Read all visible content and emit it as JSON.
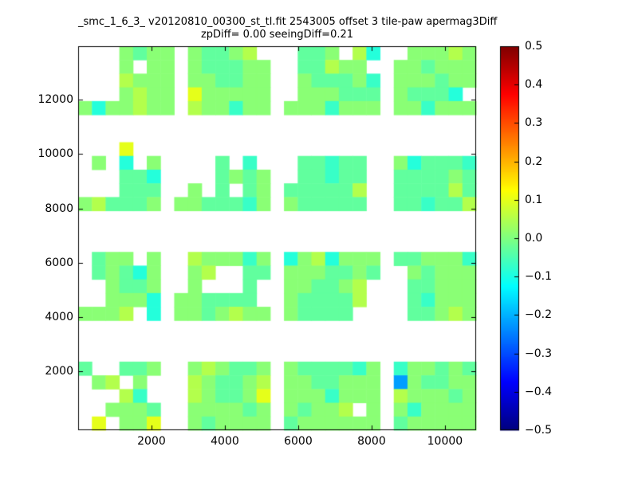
{
  "figure": {
    "title_line1": "_smc_1_6_3_ v20120810_00300_st_tl.fit 2543005 offset 3 tile-paw apermag3Diff",
    "title_line2": "zpDiff= 0.00 seeingDiff=0.21"
  },
  "chart_data": {
    "type": "heatmap",
    "colormap": "jet",
    "value_range": [
      -0.5,
      0.5
    ],
    "x_range": [
      0,
      10850
    ],
    "y_range": [
      -170,
      13970
    ],
    "x_ticks": [
      2000,
      4000,
      6000,
      8000,
      10000
    ],
    "y_ticks": [
      2000,
      4000,
      6000,
      8000,
      10000,
      12000
    ],
    "colorbar_tick_labels": [
      "0.5",
      "0.4",
      "0.3",
      "0.2",
      "0.1",
      "0.0",
      "−0.1",
      "−0.2",
      "−0.3",
      "−0.4",
      "−0.5"
    ],
    "grid_legend": {
      ".": null,
      "g": 0.01,
      "G": -0.03,
      "c": -0.07,
      "C": -0.09,
      "y": 0.05,
      "Y": 0.1,
      "B": -0.22
    },
    "grid_note": "28 rows (top to bottom) x 29 cols (left to right); chars map to apermag3Diff values via grid_legend",
    "grid_rows": [
      "...gGgg.gGGgy...GGg.yC..gggyg",
      "...g.gg.gGGGgg..GGygg..ggGggg",
      "...yggg.ggGGgg..gGGGgc.gggGgg",
      "...gygg.Yggggg..gggGGG.gGGGC.",
      "gCggygg.yggcgg.gggcggg.ggcggg",
      ".............................",
      ".............................",
      "...Y.........................",
      ".g.C.g....G.c...GGcGG..gCGGGc",
      "...GGC....GgGg..GGcGG..GGGGgG",
      "...GGG..g.G.Gg.GGGGGy..GGGGyG",
      "gyGGGg.ggGGGcg.gGGGGG..GGcGGy",
      ".............................",
      ".............................",
      ".............................",
      ".Ggg.g..ygggcg.CgyCggg.GGgggc",
      ".GgGCg..gy..GG.gggGGgG..gGggg",
      "..gGGg..g...G..ggGGgy...GGggg",
      "..gggC.ggGGGG..gGGGGy...Gcggg",
      "gggy.C.ggGgygg.gGGGG....GGgyg",
      ".............................",
      ".............................",
      ".............................",
      "G..GGg..gygGGg.gGGGGcg.cggGgG",
      ".gy.g...ygGGgy.ggGGggg.BgGGgg",
      "...yc...ygGGgY.gggcggg.ygggGg",
      "..gggG..ggggGg.gGggy.g.gcgggg",
      ".Y.ggY..gGgggg.Ggggggg.Gggggg"
    ]
  }
}
